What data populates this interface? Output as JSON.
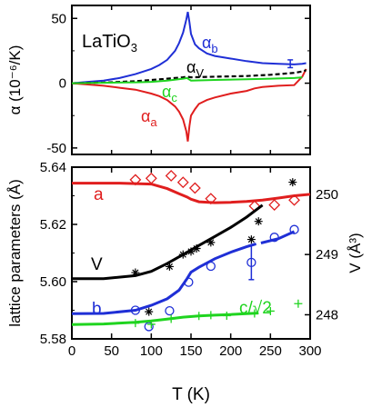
{
  "chart_data": [
    {
      "type": "line",
      "panel": "top",
      "title": "LaTiO3",
      "xlim": [
        0,
        300
      ],
      "ylim": [
        -55,
        60
      ],
      "yticks": [
        -50,
        0,
        50
      ],
      "ylabel": "α (10⁻⁶/K)",
      "series": [
        {
          "name": "α_b",
          "color": "#1f2fd6",
          "x": [
            0,
            20,
            40,
            60,
            80,
            100,
            110,
            120,
            130,
            135,
            140,
            144,
            146,
            148,
            150,
            155,
            160,
            170,
            180,
            200,
            220,
            240,
            260,
            280,
            290,
            295
          ],
          "y": [
            0,
            1,
            2,
            4,
            7,
            11,
            14,
            18,
            25,
            31,
            39,
            49,
            55,
            47,
            38,
            30,
            27,
            23,
            21,
            19,
            17,
            15.5,
            15,
            14.5,
            15,
            15.5
          ]
        },
        {
          "name": "α_a",
          "color": "#e01e1e",
          "x": [
            0,
            20,
            40,
            60,
            80,
            100,
            110,
            120,
            130,
            135,
            140,
            144,
            146,
            148,
            150,
            155,
            160,
            170,
            180,
            200,
            220,
            230,
            240,
            260,
            280,
            290,
            295
          ],
          "y": [
            0,
            -1,
            -2,
            -3.5,
            -5,
            -8,
            -10,
            -13,
            -18,
            -22,
            -28,
            -37,
            -45,
            -33,
            -25,
            -20,
            -16,
            -13,
            -11,
            -8,
            -6,
            -4,
            -3,
            -2,
            -1.5,
            5,
            11
          ]
        },
        {
          "name": "α_V",
          "color": "#000000",
          "dashed": true,
          "x": [
            0,
            40,
            80,
            100,
            120,
            140,
            145,
            150,
            180,
            220,
            250,
            280,
            290,
            295
          ],
          "y": [
            0,
            0.5,
            1.5,
            2.5,
            3.5,
            4.5,
            5,
            4.5,
            5,
            5.5,
            6.5,
            8,
            9,
            10
          ]
        },
        {
          "name": "α_c",
          "color": "#1fd41f",
          "x": [
            0,
            40,
            80,
            100,
            120,
            140,
            145,
            150,
            180,
            220,
            250,
            280,
            290
          ],
          "y": [
            0,
            0.3,
            0.7,
            1,
            2,
            3.5,
            4,
            2,
            2.5,
            3,
            3.5,
            4,
            4.5
          ]
        }
      ],
      "labels": [
        {
          "text": "α",
          "sub": "b",
          "color": "#1f2fd6"
        },
        {
          "text": "α",
          "sub": "V",
          "color": "#000000"
        },
        {
          "text": "α",
          "sub": "c",
          "color": "#1fd41f"
        },
        {
          "text": "α",
          "sub": "a",
          "color": "#e01e1e"
        }
      ],
      "errorbar": {
        "x": 275,
        "y": 15,
        "err": 3,
        "color": "#1f2fd6"
      }
    },
    {
      "type": "line",
      "panel": "bottom",
      "xlim": [
        0,
        300
      ],
      "xticks": [
        0,
        50,
        100,
        150,
        200,
        250,
        300
      ],
      "xlabel": "T (K)",
      "ylim": [
        5.58,
        5.64
      ],
      "yticks": [
        5.58,
        5.6,
        5.62,
        5.64
      ],
      "ylabel": "lattice parameters (Å)",
      "y2label": "V (Å³)",
      "y2lim": [
        247.6,
        250.45
      ],
      "y2ticks": [
        248,
        249,
        250
      ],
      "series": [
        {
          "name": "a",
          "color": "#e01e1e",
          "line_x": [
            0,
            60,
            100,
            120,
            135,
            145,
            150,
            160,
            180,
            200,
            220,
            240,
            260,
            280,
            300
          ],
          "line_y": [
            5.6344,
            5.6344,
            5.6341,
            5.6325,
            5.6307,
            5.6296,
            5.6288,
            5.6279,
            5.6276,
            5.6277,
            5.628,
            5.6285,
            5.6292,
            5.63,
            5.6305
          ],
          "marker": "diamond",
          "points_x": [
            80,
            100,
            125,
            140,
            155,
            175,
            230,
            255,
            280
          ],
          "points_y": [
            5.6356,
            5.6361,
            5.637,
            5.6347,
            5.6327,
            5.629,
            5.6264,
            5.6268,
            5.6285
          ]
        },
        {
          "name": "V",
          "color": "#000000",
          "axis": "right",
          "line_x": [
            0,
            40,
            80,
            100,
            120,
            140,
            160,
            180,
            200,
            220,
            240
          ],
          "line_y": [
            248.6,
            248.6,
            248.65,
            248.72,
            248.85,
            249.0,
            249.15,
            249.3,
            249.45,
            249.62,
            249.82
          ],
          "marker": "asterisk",
          "points_x": [
            80,
            97,
            123,
            140,
            150,
            157,
            175,
            226,
            235,
            278
          ],
          "points_y": [
            248.7,
            248.05,
            248.8,
            249.0,
            249.05,
            249.1,
            249.2,
            249.25,
            249.55,
            250.2
          ]
        },
        {
          "name": "b",
          "color": "#1f2fd6",
          "line_x": [
            0,
            40,
            80,
            100,
            120,
            135,
            145,
            150,
            160,
            180,
            200,
            220,
            232
          ],
          "line_y": [
            5.5888,
            5.5889,
            5.59,
            5.5917,
            5.594,
            5.597,
            5.601,
            5.6033,
            5.605,
            5.608,
            5.6103,
            5.6122,
            5.6132
          ],
          "line2_x": [
            238,
            260,
            280
          ],
          "line2_y": [
            5.6135,
            5.615,
            5.6175
          ],
          "marker": "circle",
          "points_x": [
            80,
            97,
            123,
            147,
            175,
            226,
            255,
            280
          ],
          "points_y": [
            5.59,
            5.5843,
            5.5898,
            5.5998,
            5.6054,
            5.6067,
            5.6155,
            5.6182
          ],
          "errorbar": {
            "x": 226,
            "y": 5.6067,
            "err": 0.006
          }
        },
        {
          "name": "c/√2",
          "color": "#1fd41f",
          "line_x": [
            0,
            40,
            80,
            100,
            120,
            140,
            160,
            180,
            200,
            220,
            235
          ],
          "line_y": [
            5.585,
            5.5852,
            5.5858,
            5.5863,
            5.5869,
            5.5876,
            5.588,
            5.5883,
            5.5885,
            5.5888,
            5.589
          ],
          "marker": "plus",
          "points_x": [
            80,
            100,
            125,
            160,
            175,
            195,
            230,
            250,
            285
          ],
          "points_y": [
            5.5855,
            5.5851,
            5.587,
            5.588,
            5.5883,
            5.5881,
            5.5889,
            5.5897,
            5.5923
          ]
        }
      ]
    }
  ]
}
